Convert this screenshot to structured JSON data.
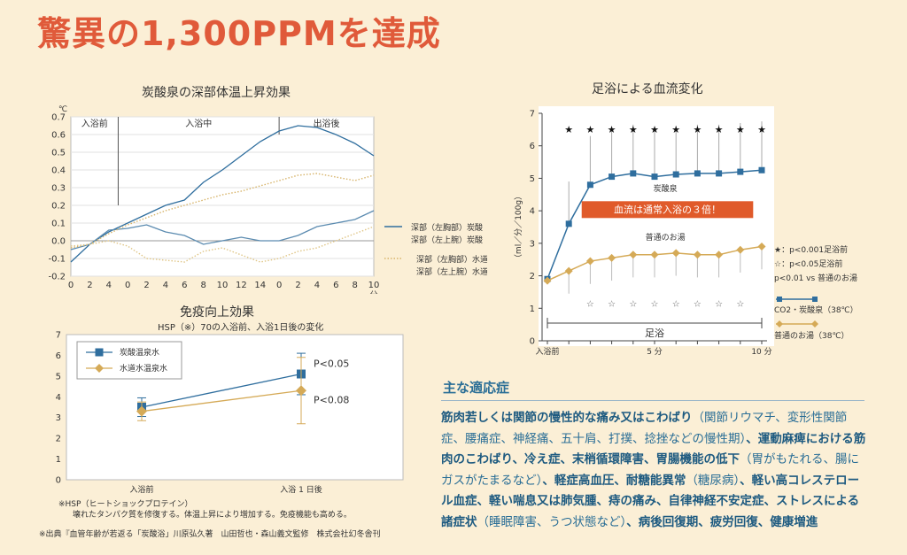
{
  "headline": "驚異の1,300PPMを達成",
  "chart1": {
    "title": "炭酸泉の深部体温上昇効果",
    "unit": "℃",
    "phases": [
      "入浴前",
      "入浴中",
      "出浴後"
    ],
    "x_ticks": [
      "0",
      "2",
      "4",
      "0",
      "2",
      "4",
      "6",
      "8",
      "10",
      "12",
      "14",
      "0",
      "2",
      "4",
      "6",
      "8",
      "10"
    ],
    "x_unit": "分",
    "y_ticks": [
      "0.7",
      "0.6",
      "0.5",
      "0.4",
      "0.3",
      "0.2",
      "0.1",
      "0.0",
      "-0.1",
      "-0.2"
    ],
    "ylim": [
      -0.2,
      0.7
    ],
    "legend": [
      "深部（左胸部）炭酸",
      "深部（左上腕）炭酸",
      "深部（左胸部）水道水",
      "深部（左上腕）水道水"
    ]
  },
  "chart2": {
    "title": "免疫向上効果",
    "subtitle": "HSP（※）70の入浴前、入浴1日後の変化",
    "y_ticks": [
      "7",
      "6",
      "5",
      "4",
      "3",
      "2",
      "1",
      "0"
    ],
    "x_labels": [
      "入浴前",
      "入浴 1 日後"
    ],
    "annotations": [
      "P<0.05",
      "P<0.08"
    ],
    "note_line1": "※HSP（ヒートショックプロテイン）",
    "note_line2": "壊れたタンパク質を修復する。体温上昇により増加する。免疫機能も高める。",
    "source": "※出典『血管年齢が若返る「炭酸浴」川原弘久著　山田哲也・森山義文監修　株式会社幻冬舎刊"
  },
  "chart3": {
    "title": "足浴による血流変化",
    "ylabel": "（ml／分／100g）",
    "y_ticks": [
      "7",
      "6",
      "5",
      "4",
      "3",
      "2",
      "1",
      "0"
    ],
    "x_labels": [
      "入浴前",
      "5 分",
      "10 分"
    ],
    "xlabel": "足浴",
    "series_labels": [
      "炭酸泉",
      "普通のお湯"
    ],
    "callout": "血流は通常入浴の３倍！",
    "star_mark": "★",
    "open_star_mark": "☆",
    "legend_notes": [
      "★：p<0.001足浴前",
      "☆：p<0.05足浴前",
      "p<0.01 vs 普通のお湯"
    ],
    "legend_series": [
      "CO2・炭酸泉（38℃）",
      "普通のお湯（38℃）"
    ]
  },
  "indications": {
    "title": "主な適応症",
    "parts": [
      [
        "筋肉若しくは関節の慢性的な痛み又はこわばり",
        true
      ],
      [
        "（関節リウマチ、変形性関節症、腰痛症、神経痛、五十肩、打撲、捻挫などの慢性期）",
        false
      ],
      [
        "、運動麻痺における筋肉のこわばり、冷え症、末梢循環障害、胃腸機能の低下",
        true
      ],
      [
        "（胃がもたれる、腸にガスがたまるなど）",
        false
      ],
      [
        "、軽症高血圧、耐糖能異常",
        true
      ],
      [
        "（糖尿病）",
        false
      ],
      [
        "、軽い高コレステロール血症、軽い喘息又は肺気腫、痔の痛み、自律神経不安定症、ストレスによる諸症状",
        true
      ],
      [
        "（睡眠障害、うつ状態など）",
        false
      ],
      [
        "、病後回復期、疲労回復、健康増進",
        true
      ]
    ]
  },
  "chart_data": [
    {
      "type": "line",
      "title": "炭酸泉の深部体温上昇効果",
      "x": [
        0,
        2,
        4,
        6,
        8,
        10,
        12,
        14,
        16,
        18,
        20,
        22,
        24,
        26,
        28,
        30,
        32
      ],
      "xlim": [
        0,
        32
      ],
      "ylim": [
        -0.2,
        0.7
      ],
      "grid": true,
      "series": [
        {
          "name": "深部（左胸部）炭酸",
          "color": "#2f6e9e",
          "style": "solid",
          "values": [
            -0.12,
            -0.02,
            0.05,
            0.1,
            0.15,
            0.2,
            0.23,
            0.33,
            0.4,
            0.48,
            0.56,
            0.62,
            0.65,
            0.64,
            0.6,
            0.55,
            0.48
          ]
        },
        {
          "name": "深部（左上腕）炭酸",
          "color": "#5b8bb0",
          "style": "solid",
          "values": [
            -0.05,
            -0.02,
            0.06,
            0.07,
            0.09,
            0.05,
            0.03,
            -0.02,
            0.0,
            0.02,
            0.0,
            0.0,
            0.03,
            0.08,
            0.1,
            0.12,
            0.17
          ]
        },
        {
          "name": "深部（左胸部）水道水",
          "color": "#d7b46a",
          "style": "dot",
          "values": [
            -0.04,
            -0.02,
            0.04,
            0.09,
            0.13,
            0.17,
            0.2,
            0.23,
            0.26,
            0.28,
            0.31,
            0.34,
            0.37,
            0.38,
            0.36,
            0.34,
            0.37
          ]
        },
        {
          "name": "深部（左上腕）水道水",
          "color": "#e0c687",
          "style": "dot",
          "values": [
            -0.03,
            -0.02,
            0.0,
            -0.03,
            -0.1,
            -0.11,
            -0.12,
            -0.06,
            -0.04,
            -0.08,
            -0.12,
            -0.1,
            -0.06,
            -0.04,
            0.0,
            0.04,
            0.08
          ]
        }
      ]
    },
    {
      "type": "line",
      "title": "免疫向上効果",
      "categories": [
        "入浴前",
        "入浴 1 日後"
      ],
      "ylim": [
        0,
        7
      ],
      "series": [
        {
          "name": "炭酸温泉水",
          "color": "#2f6e9e",
          "marker": "square",
          "values": [
            3.5,
            5.1
          ],
          "errors": [
            0.45,
            1.0
          ]
        },
        {
          "name": "水道水温泉水",
          "color": "#d5aa57",
          "marker": "diamond",
          "values": [
            3.3,
            4.3
          ],
          "errors": [
            0.45,
            1.6
          ]
        }
      ]
    },
    {
      "type": "line",
      "title": "足浴による血流変化",
      "x": [
        0,
        1,
        2,
        3,
        4,
        5,
        6,
        7,
        8,
        9,
        10
      ],
      "xlim": [
        0,
        10
      ],
      "ylim": [
        0,
        7
      ],
      "series": [
        {
          "name": "CO2・炭酸泉（38℃）",
          "color": "#2f6e9e",
          "marker": "square",
          "values": [
            1.9,
            3.6,
            4.8,
            5.05,
            5.15,
            5.05,
            5.12,
            5.15,
            5.15,
            5.2,
            5.25
          ]
        },
        {
          "name": "普通のお湯（38℃）",
          "color": "#d5aa57",
          "marker": "diamond",
          "values": [
            1.85,
            2.15,
            2.45,
            2.55,
            2.65,
            2.65,
            2.7,
            2.65,
            2.65,
            2.8,
            2.9
          ]
        }
      ]
    }
  ]
}
